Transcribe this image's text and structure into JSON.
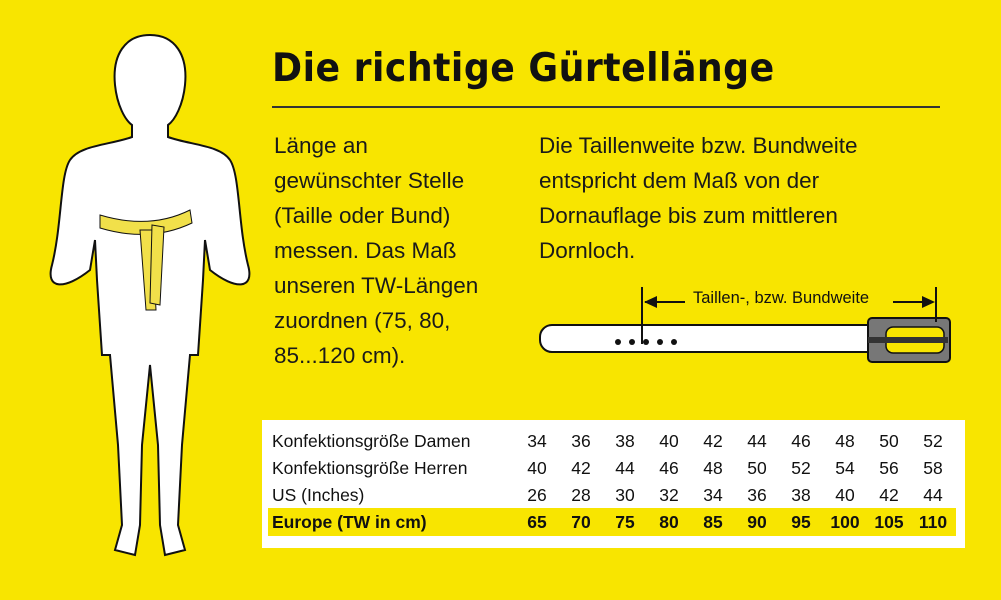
{
  "title": "Die richtige Gürtellänge",
  "left_text": "Länge an\ngewünschter Stelle\n(Taille oder Bund)\nmessen. Das Maß\nunseren TW-Längen\nzuordnen (75, 80,\n85...120 cm).",
  "right_text": "Die Taillenweite bzw. Bundweite\nentspricht dem Maß von der\nDornauflage bis zum mittleren\nDornloch.",
  "belt_label": "Taillen-, bzw. Bundweite",
  "colors": {
    "background": "#f8e500",
    "highlight": "#f8e500",
    "table": "#ffffff",
    "buckle": "#777777"
  },
  "table": {
    "rows": [
      {
        "label": "Konfektionsgröße Damen",
        "values": [
          "34",
          "36",
          "38",
          "40",
          "42",
          "44",
          "46",
          "48",
          "50",
          "52"
        ]
      },
      {
        "label": "Konfektionsgröße Herren",
        "values": [
          "40",
          "42",
          "44",
          "46",
          "48",
          "50",
          "52",
          "54",
          "56",
          "58"
        ]
      },
      {
        "label": "US (Inches)",
        "values": [
          "26",
          "28",
          "30",
          "32",
          "34",
          "36",
          "38",
          "40",
          "42",
          "44"
        ]
      },
      {
        "label": "Europe (TW in cm)",
        "values": [
          "65",
          "70",
          "75",
          "80",
          "85",
          "90",
          "95",
          "100",
          "105",
          "110"
        ],
        "highlighted": true
      }
    ]
  }
}
